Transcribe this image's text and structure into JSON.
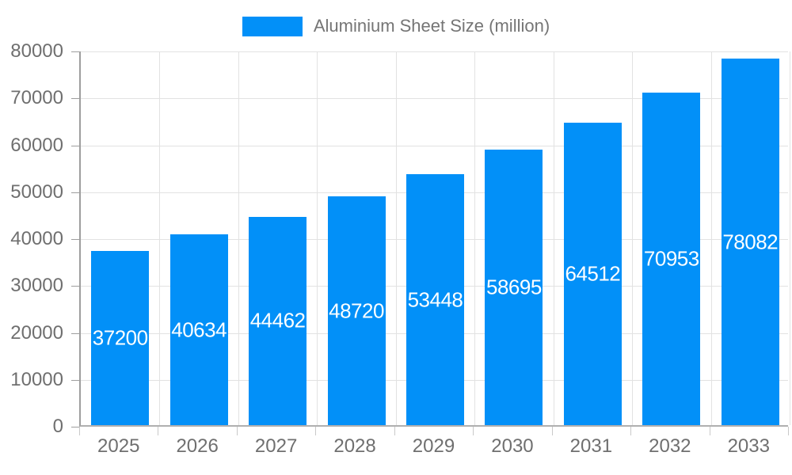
{
  "legend": {
    "label": "Aluminium Sheet Size (million)",
    "swatch_icon": "legend-color-swatch"
  },
  "colors": {
    "bar": "#0290f8",
    "grid": "#e2e2e2",
    "axis_line": "#9e9e9e",
    "baseline": "#b0b0b0",
    "axis_text": "#6f6f6f",
    "legend_text": "#757575",
    "bar_label_text": "#ffffff"
  },
  "chart_data": {
    "type": "bar",
    "title": "Aluminium Sheet Size (million)",
    "xlabel": "",
    "ylabel": "",
    "categories": [
      "2025",
      "2026",
      "2027",
      "2028",
      "2029",
      "2030",
      "2031",
      "2032",
      "2033"
    ],
    "values": [
      37200,
      40634,
      44462,
      48720,
      53448,
      58695,
      64512,
      70953,
      78082
    ],
    "data_labels": [
      "37200",
      "40634",
      "44462",
      "48720",
      "53448",
      "58695",
      "64512",
      "70953",
      "78082"
    ],
    "ylim": [
      0,
      80000
    ],
    "ytick_interval": 10000,
    "yticks": [
      0,
      10000,
      20000,
      30000,
      40000,
      50000,
      60000,
      70000,
      80000
    ],
    "ytick_labels": [
      "0",
      "10000",
      "20000",
      "30000",
      "40000",
      "50000",
      "60000",
      "70000",
      "80000"
    ],
    "grid": true,
    "legend_position": "top",
    "data_label_position": "inside-center"
  }
}
